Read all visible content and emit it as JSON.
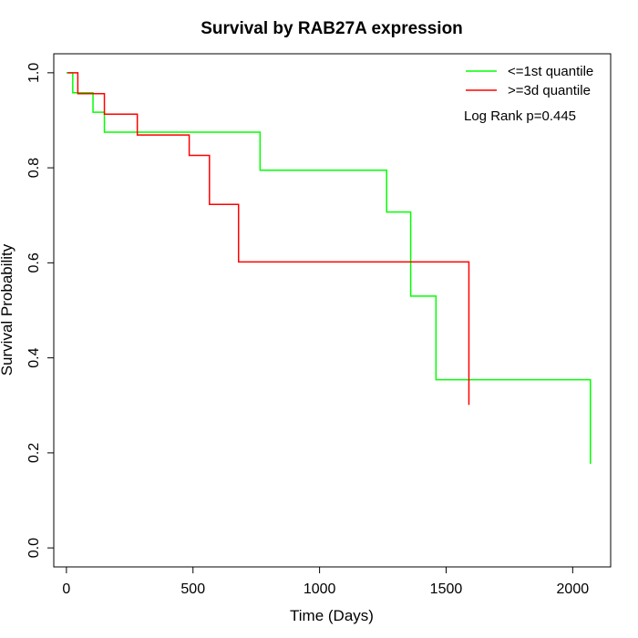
{
  "chart_data": {
    "type": "line",
    "step": true,
    "title": "Survival by RAB27A expression",
    "xlabel": "Time (Days)",
    "ylabel": "Survival Probability",
    "xlim": [
      -50,
      2150
    ],
    "ylim": [
      -0.04,
      1.04
    ],
    "xticks": [
      0,
      500,
      1000,
      1500,
      2000
    ],
    "yticks": [
      0.0,
      0.2,
      0.4,
      0.6,
      0.8,
      1.0
    ],
    "xtick_labels": [
      "0",
      "500",
      "1000",
      "1500",
      "2000"
    ],
    "ytick_labels": [
      "0.0",
      "0.2",
      "0.4",
      "0.6",
      "0.8",
      "1.0"
    ],
    "grid": false,
    "legend_position": "top-right",
    "annotation": "Log Rank p=0.445",
    "series": [
      {
        "name": "<=1st quantile",
        "color": "#00ff00",
        "x": [
          0,
          25,
          105,
          150,
          550,
          765,
          1265,
          1360,
          1460,
          2070
        ],
        "y": [
          1.0,
          0.958,
          0.917,
          0.875,
          0.875,
          0.795,
          0.707,
          0.53,
          0.354,
          0.177
        ]
      },
      {
        "name": ">=3d quantile",
        "color": "#ff0000",
        "x": [
          5,
          45,
          150,
          280,
          485,
          565,
          680,
          1590
        ],
        "y": [
          1.0,
          0.956,
          0.913,
          0.869,
          0.826,
          0.723,
          0.602,
          0.301
        ]
      }
    ]
  }
}
